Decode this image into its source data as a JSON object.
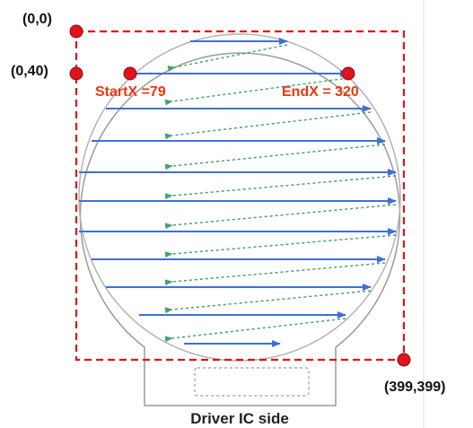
{
  "labels": {
    "origin": "(0,0)",
    "row_40": "(0,40)",
    "start_x": "StartX =79",
    "end_x": "EndX = 320",
    "bottom_right": "(399,399)",
    "footer": "Driver IC side"
  },
  "colors": {
    "frame_dashed": "#e0141c",
    "marker": "#e0141c",
    "scan_arrow": "#3f6fd8",
    "retrace_arrow": "#4aa36b",
    "panel_outline": "#9a9a9a",
    "label_red": "#e8380d",
    "label_dark": "#111111"
  },
  "icons": {
    "marker": "red-dot-icon",
    "scan": "blue-arrow-icon",
    "retrace": "green-dashed-arrow-icon"
  }
}
